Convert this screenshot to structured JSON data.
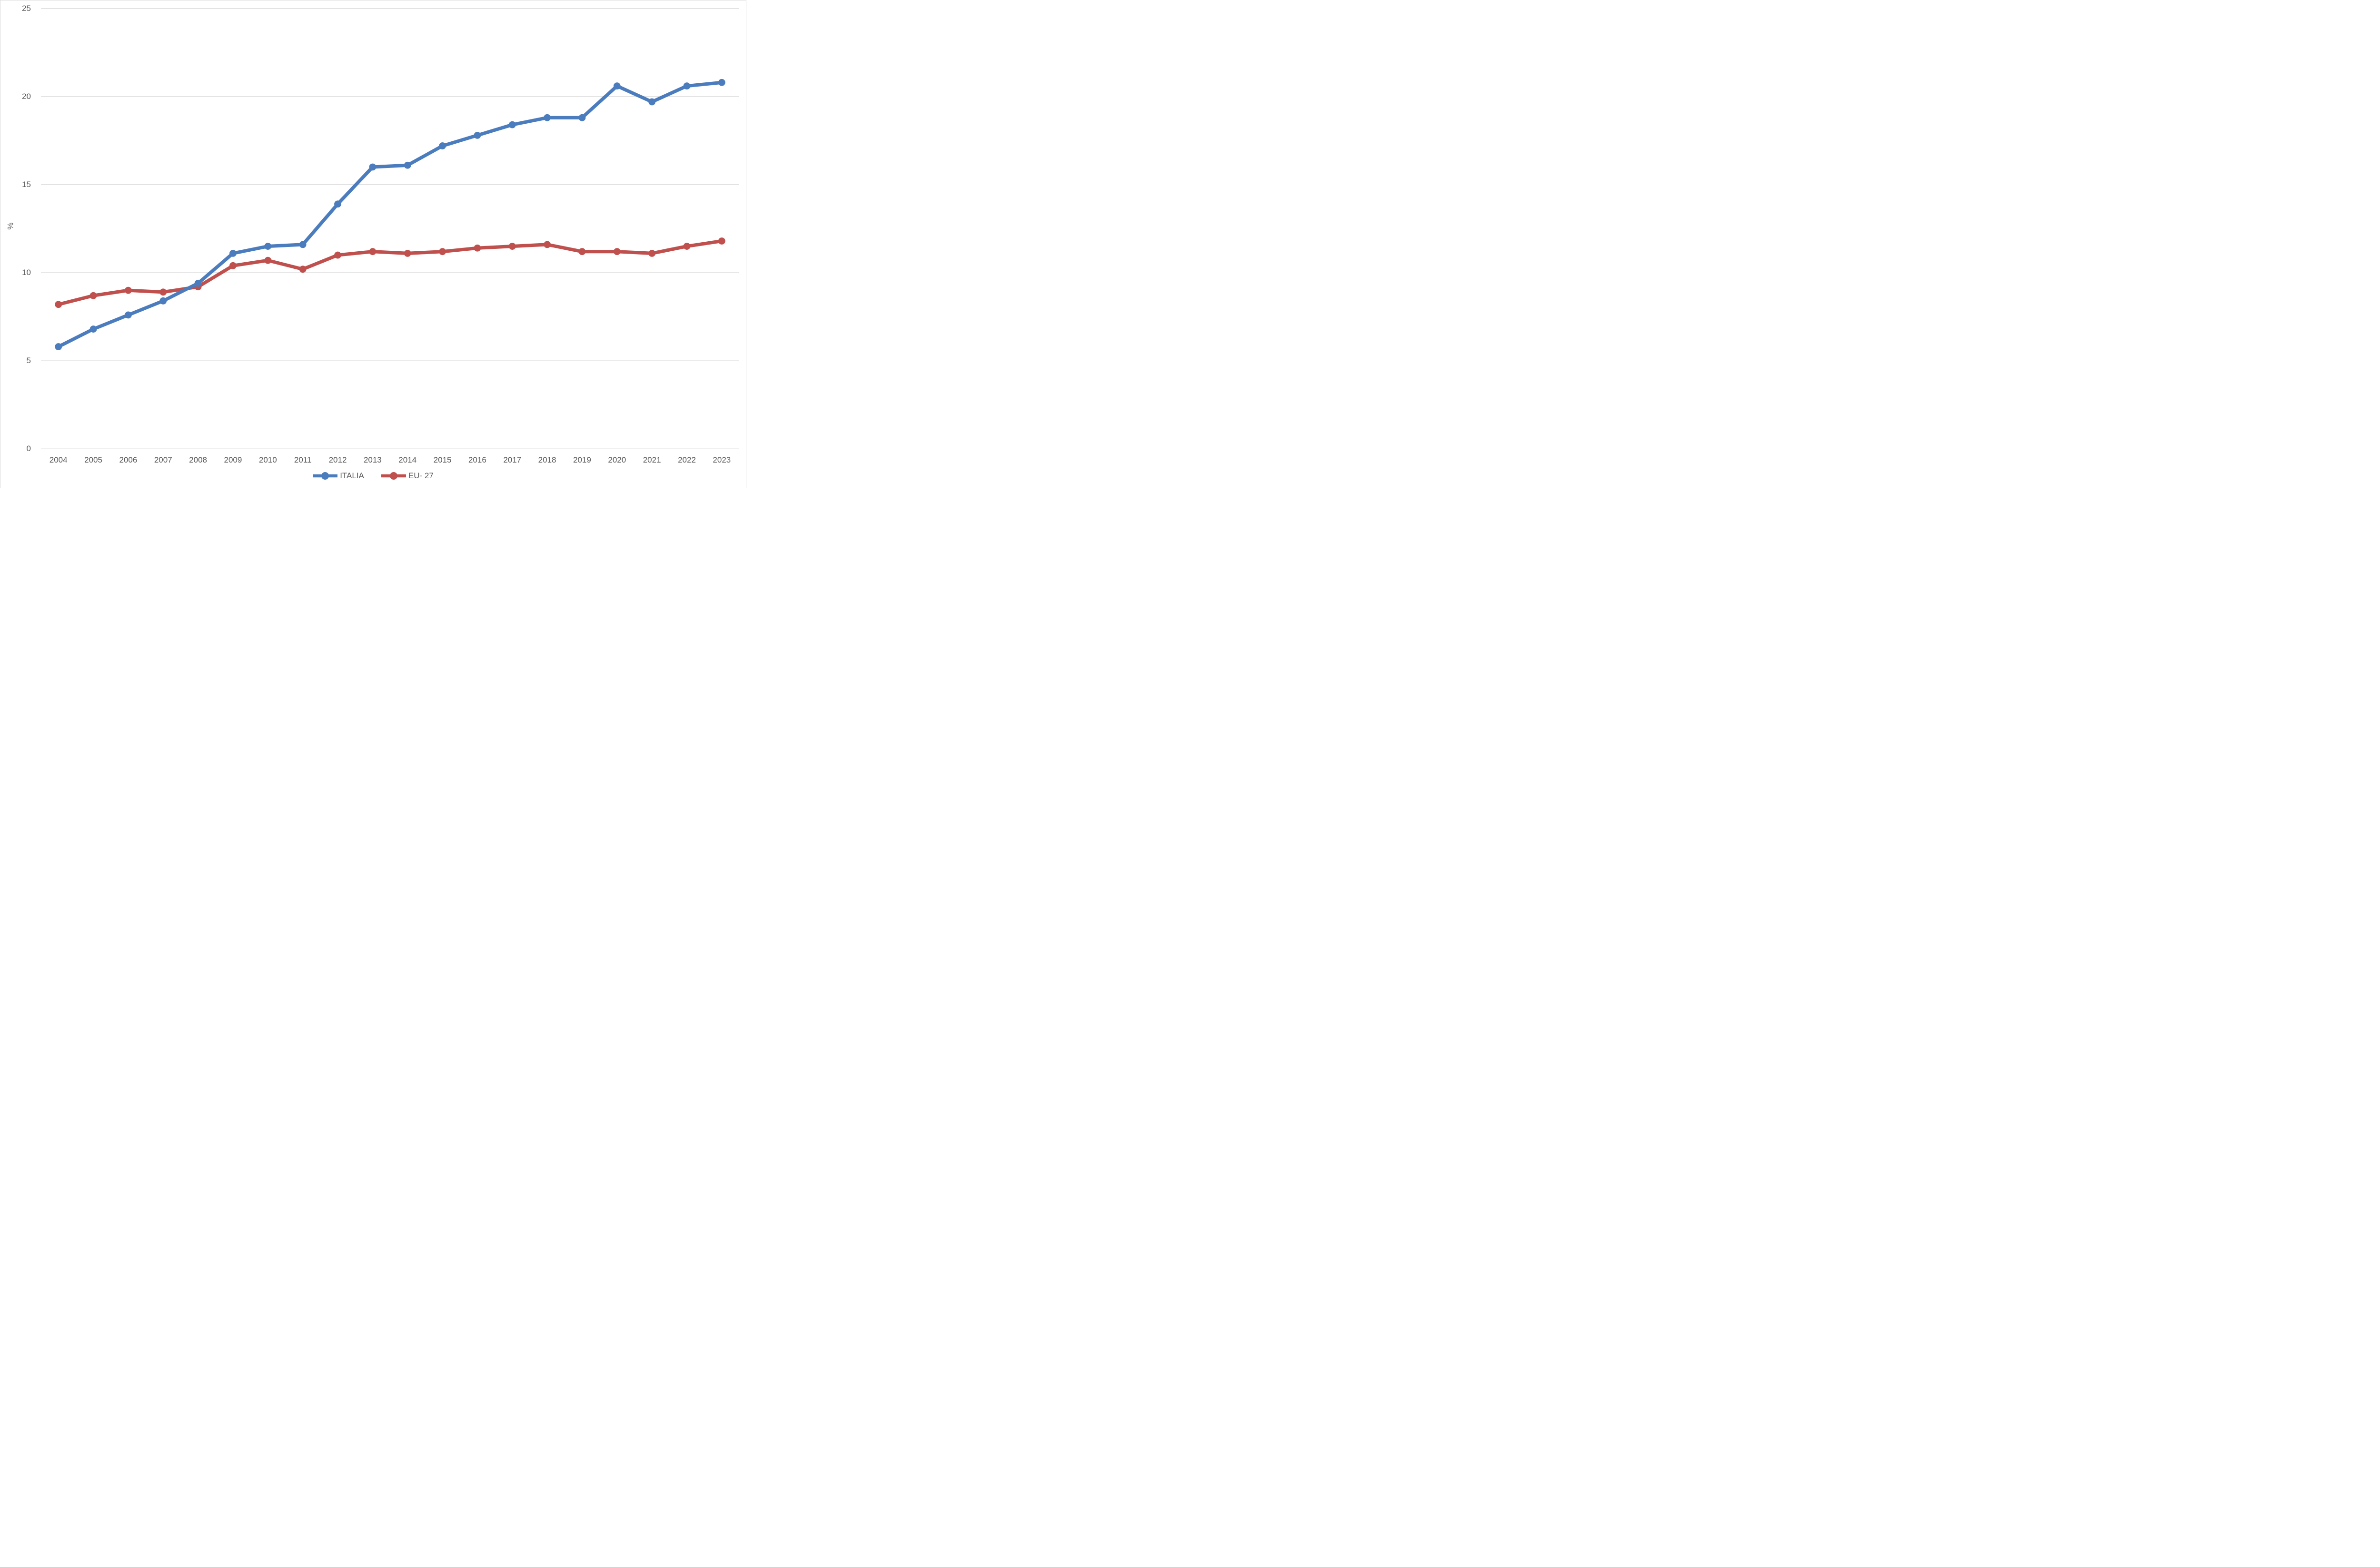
{
  "chart_data": {
    "type": "line",
    "title": "",
    "ylabel": "%",
    "xlabel": "",
    "categories": [
      "2004",
      "2005",
      "2006",
      "2007",
      "2008",
      "2009",
      "2010",
      "2011",
      "2012",
      "2013",
      "2014",
      "2015",
      "2016",
      "2017",
      "2018",
      "2019",
      "2020",
      "2021",
      "2022",
      "2023"
    ],
    "series": [
      {
        "name": "ITALIA",
        "color": "#4A7CBE",
        "values": [
          5.8,
          6.8,
          7.6,
          8.4,
          9.4,
          11.1,
          11.5,
          11.6,
          13.9,
          16.0,
          16.1,
          17.2,
          17.8,
          18.4,
          18.8,
          18.8,
          20.6,
          19.7,
          20.6,
          20.8
        ]
      },
      {
        "name": "EU- 27",
        "color": "#C0504D",
        "values": [
          8.2,
          8.7,
          9.0,
          8.9,
          9.2,
          10.4,
          10.7,
          10.2,
          11.0,
          11.2,
          11.1,
          11.2,
          11.4,
          11.5,
          11.6,
          11.2,
          11.2,
          11.1,
          11.5,
          11.8
        ]
      }
    ],
    "ylim": [
      0,
      25
    ],
    "yticks": [
      0,
      5,
      10,
      15,
      20,
      25
    ],
    "grid": "horizontal-gridlines-on",
    "gridline_color": "#D9D9D9",
    "text_color": "#595959",
    "legend_position": "bottom-center",
    "legend_labels": [
      "ITALIA",
      "EU- 27"
    ]
  }
}
